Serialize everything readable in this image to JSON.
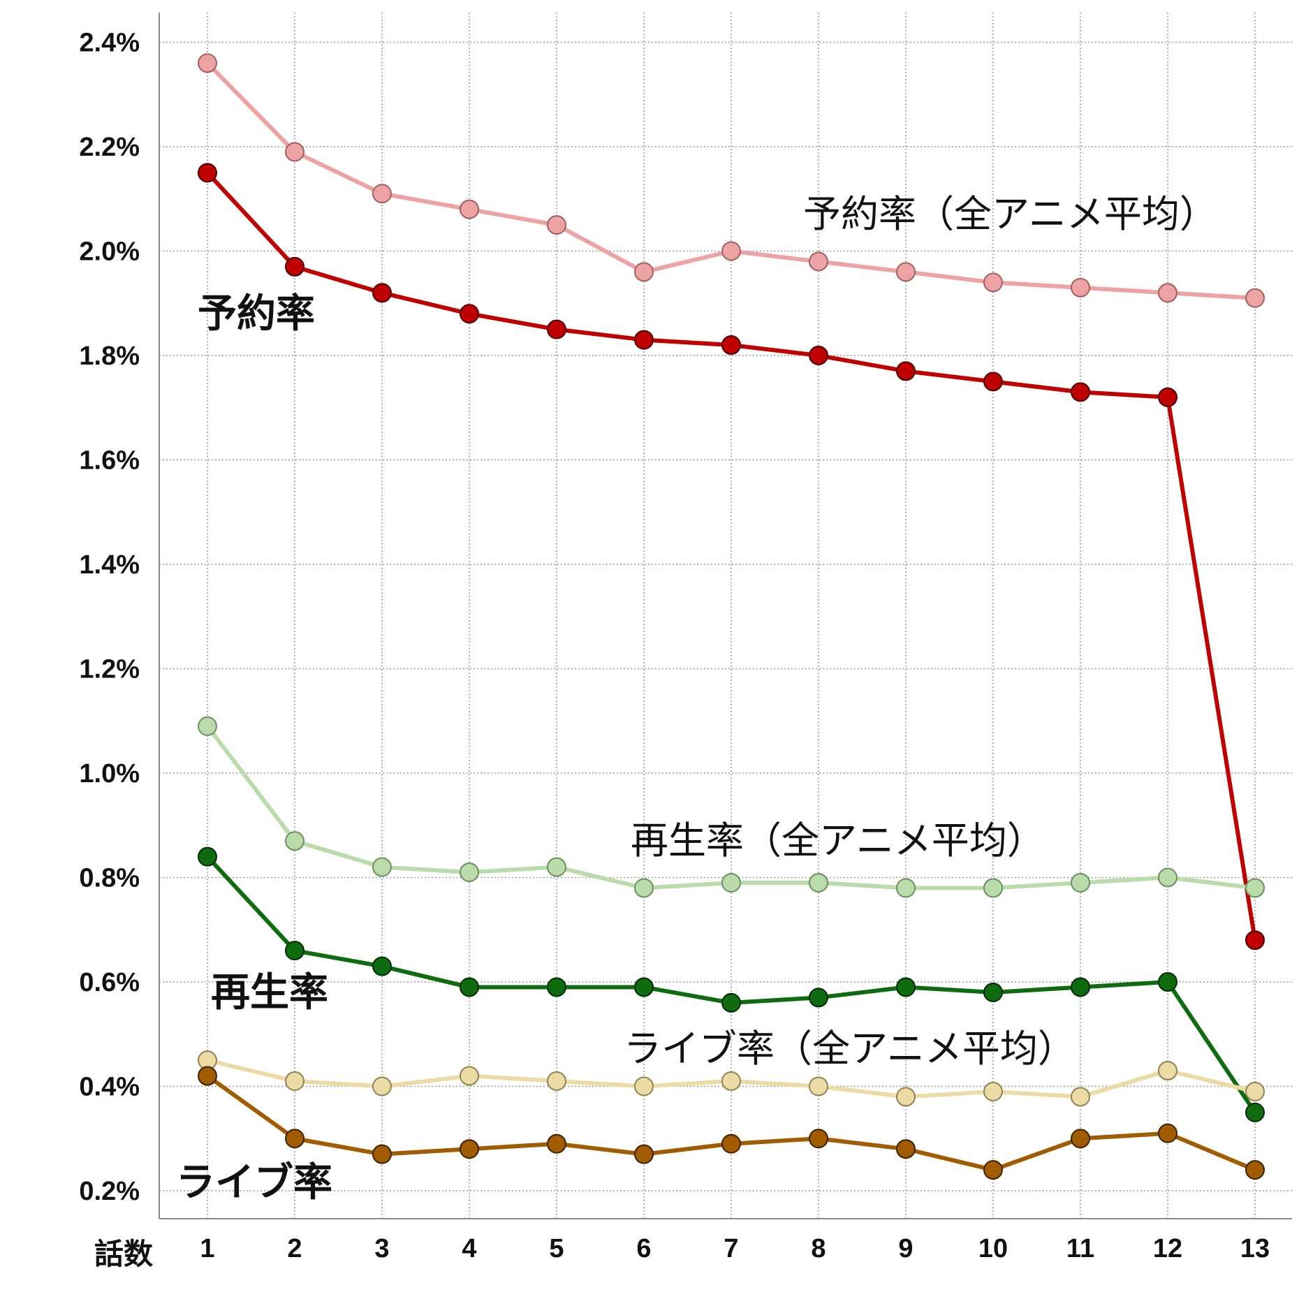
{
  "chart_data": {
    "type": "line",
    "xlabel": "話数",
    "x": [
      1,
      2,
      3,
      4,
      5,
      6,
      7,
      8,
      9,
      10,
      11,
      12,
      13
    ],
    "y_ticks": [
      "0.2%",
      "0.4%",
      "0.6%",
      "0.8%",
      "1.0%",
      "1.2%",
      "1.4%",
      "1.6%",
      "1.8%",
      "2.0%",
      "2.2%",
      "2.4%"
    ],
    "ylim": [
      0.15,
      2.46
    ],
    "grid": true,
    "series": [
      {
        "name": "予約率（全アニメ平均）",
        "color": "#eda3a3",
        "stroke": "#a06060",
        "values": [
          2.36,
          2.19,
          2.11,
          2.08,
          2.05,
          1.96,
          2.0,
          1.98,
          1.96,
          1.94,
          1.93,
          1.92,
          1.91
        ]
      },
      {
        "name": "予約率",
        "color": "#c00000",
        "stroke": "#4a0000",
        "values": [
          2.15,
          1.97,
          1.92,
          1.88,
          1.85,
          1.83,
          1.82,
          1.8,
          1.77,
          1.75,
          1.73,
          1.72,
          0.68
        ]
      },
      {
        "name": "再生率（全アニメ平均）",
        "color": "#b9dcaa",
        "stroke": "#6d8f60",
        "values": [
          1.09,
          0.87,
          0.82,
          0.81,
          0.82,
          0.78,
          0.79,
          0.79,
          0.78,
          0.78,
          0.79,
          0.8,
          0.78
        ]
      },
      {
        "name": "再生率",
        "color": "#0e6b0e",
        "stroke": "#002a00",
        "values": [
          0.84,
          0.66,
          0.63,
          0.59,
          0.59,
          0.59,
          0.56,
          0.57,
          0.59,
          0.58,
          0.59,
          0.6,
          0.35
        ]
      },
      {
        "name": "ライブ率（全アニメ平均）",
        "color": "#eddba5",
        "stroke": "#8f8255",
        "values": [
          0.45,
          0.41,
          0.4,
          0.42,
          0.41,
          0.4,
          0.41,
          0.4,
          0.38,
          0.39,
          0.38,
          0.43,
          0.39
        ]
      },
      {
        "name": "ライブ率",
        "color": "#a15c00",
        "stroke": "#3e2200",
        "values": [
          0.42,
          0.3,
          0.27,
          0.28,
          0.29,
          0.27,
          0.29,
          0.3,
          0.28,
          0.24,
          0.3,
          0.31,
          0.24
        ]
      }
    ],
    "labels": {
      "yoyaku_avg": "予約率（全アニメ平均）",
      "yoyaku": "予約率",
      "saisei_avg": "再生率（全アニメ平均）",
      "saisei": "再生率",
      "live_avg": "ライブ率（全アニメ平均）",
      "live": "ライブ率"
    }
  }
}
